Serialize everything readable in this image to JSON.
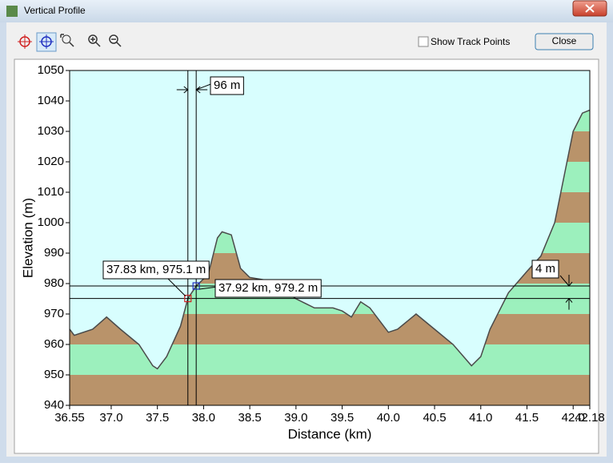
{
  "window": {
    "title": "Vertical Profile",
    "checkbox_label": "Show Track Points",
    "close_button": "Close"
  },
  "chart_data": {
    "type": "area",
    "xlabel": "Distance (km)",
    "ylabel": "Elevation (m)",
    "xlim": [
      36.55,
      42.18
    ],
    "ylim": [
      940,
      1050
    ],
    "xticks": [
      36.55,
      {
        "value": 37,
        "label": "37.0"
      },
      37.5,
      {
        "value": 38,
        "label": "38.0"
      },
      38.5,
      {
        "value": 39,
        "label": "39.0"
      },
      39.5,
      {
        "value": 40,
        "label": "40.0"
      },
      40.5,
      {
        "value": 41,
        "label": "41.0"
      },
      41.5,
      {
        "value": 42,
        "label": "42.0"
      },
      42.18
    ],
    "yticks": [
      940,
      950,
      960,
      970,
      980,
      990,
      1000,
      1010,
      1020,
      1030,
      1040,
      1050
    ],
    "colors": [
      "#b9936a",
      "#9cf0bd"
    ],
    "line_color": "#4a4a4a",
    "background": "#d8fefe",
    "x": [
      36.55,
      36.6,
      36.8,
      36.95,
      37.1,
      37.3,
      37.45,
      37.5,
      37.6,
      37.75,
      37.83,
      37.92,
      38.05,
      38.15,
      38.2,
      38.3,
      38.4,
      38.5,
      38.7,
      38.9,
      39.0,
      39.2,
      39.4,
      39.5,
      39.6,
      39.7,
      39.8,
      40.0,
      40.1,
      40.3,
      40.5,
      40.7,
      40.9,
      41.0,
      41.1,
      41.3,
      41.5,
      41.65,
      41.8,
      41.9,
      42.0,
      42.1,
      42.18
    ],
    "values": [
      965,
      963,
      965,
      969,
      965,
      960,
      953,
      952,
      956,
      966,
      975.1,
      979.2,
      983,
      995,
      997,
      996,
      985,
      982,
      981,
      977,
      975,
      972,
      972,
      971,
      969,
      974,
      972,
      964,
      965,
      970,
      965,
      960,
      953,
      956,
      965,
      977,
      984,
      989,
      1000,
      1015,
      1030,
      1036,
      1037
    ],
    "cursors": [
      {
        "x": 37.83,
        "y": 975.1,
        "label": "37.83 km, 975.1 m",
        "color": "#d02020"
      },
      {
        "x": 37.92,
        "y": 979.2,
        "label": "37.92 km, 979.2 m",
        "color": "#2030c0"
      }
    ],
    "dx_label": "96 m",
    "dy_label": "4 m"
  }
}
